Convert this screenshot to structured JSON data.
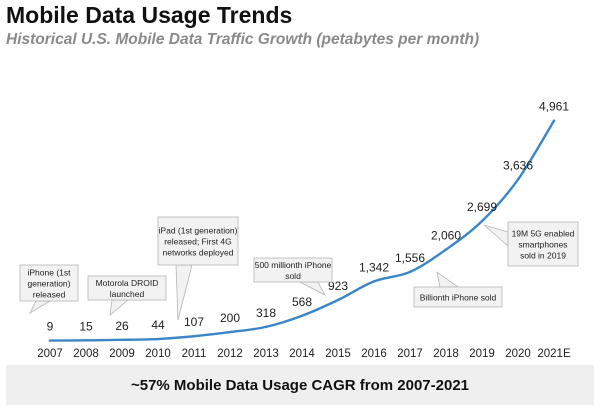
{
  "header": {
    "title": "Mobile Data Usage Trends",
    "subtitle": "Historical U.S. Mobile Data Traffic Growth (petabytes per month)"
  },
  "chart_data": {
    "type": "line",
    "title": "Mobile Data Usage Trends",
    "subtitle": "Historical U.S. Mobile Data Traffic Growth (petabytes per month)",
    "xlabel": "",
    "ylabel": "",
    "categories": [
      "2007",
      "2008",
      "2009",
      "2010",
      "2011",
      "2012",
      "2013",
      "2014",
      "2015",
      "2016",
      "2017",
      "2018",
      "2019",
      "2020",
      "2021E"
    ],
    "values": [
      9,
      15,
      26,
      44,
      107,
      200,
      318,
      568,
      923,
      1342,
      1556,
      2060,
      2699,
      3636,
      4961
    ],
    "value_labels": [
      "9",
      "15",
      "26",
      "44",
      "107",
      "200",
      "318",
      "568",
      "923",
      "1,342",
      "1,556",
      "2,060",
      "2,699",
      "3,636",
      "4,961"
    ],
    "ylim": [
      0,
      5000
    ],
    "grid": false,
    "legend": "none",
    "line_color": "#3a86c8",
    "annotations": [
      {
        "lines": [
          "iPhone (1st",
          "generation)",
          "released"
        ],
        "category": "2007"
      },
      {
        "lines": [
          "Motorola DROID",
          "launched"
        ],
        "category": "2009"
      },
      {
        "lines": [
          "iPad (1st generation)",
          "released; First 4G",
          "networks deployed"
        ],
        "category": "2011"
      },
      {
        "lines": [
          "500 millionth iPhone",
          "sold"
        ],
        "category": "2015"
      },
      {
        "lines": [
          "Billionth iPhone sold"
        ],
        "category": "2018"
      },
      {
        "lines": [
          "19M 5G enabled",
          "smartphones",
          "sold in 2019"
        ],
        "category": "2019"
      }
    ]
  },
  "footer": {
    "text": "~57% Mobile Data Usage CAGR from 2007-2021"
  }
}
